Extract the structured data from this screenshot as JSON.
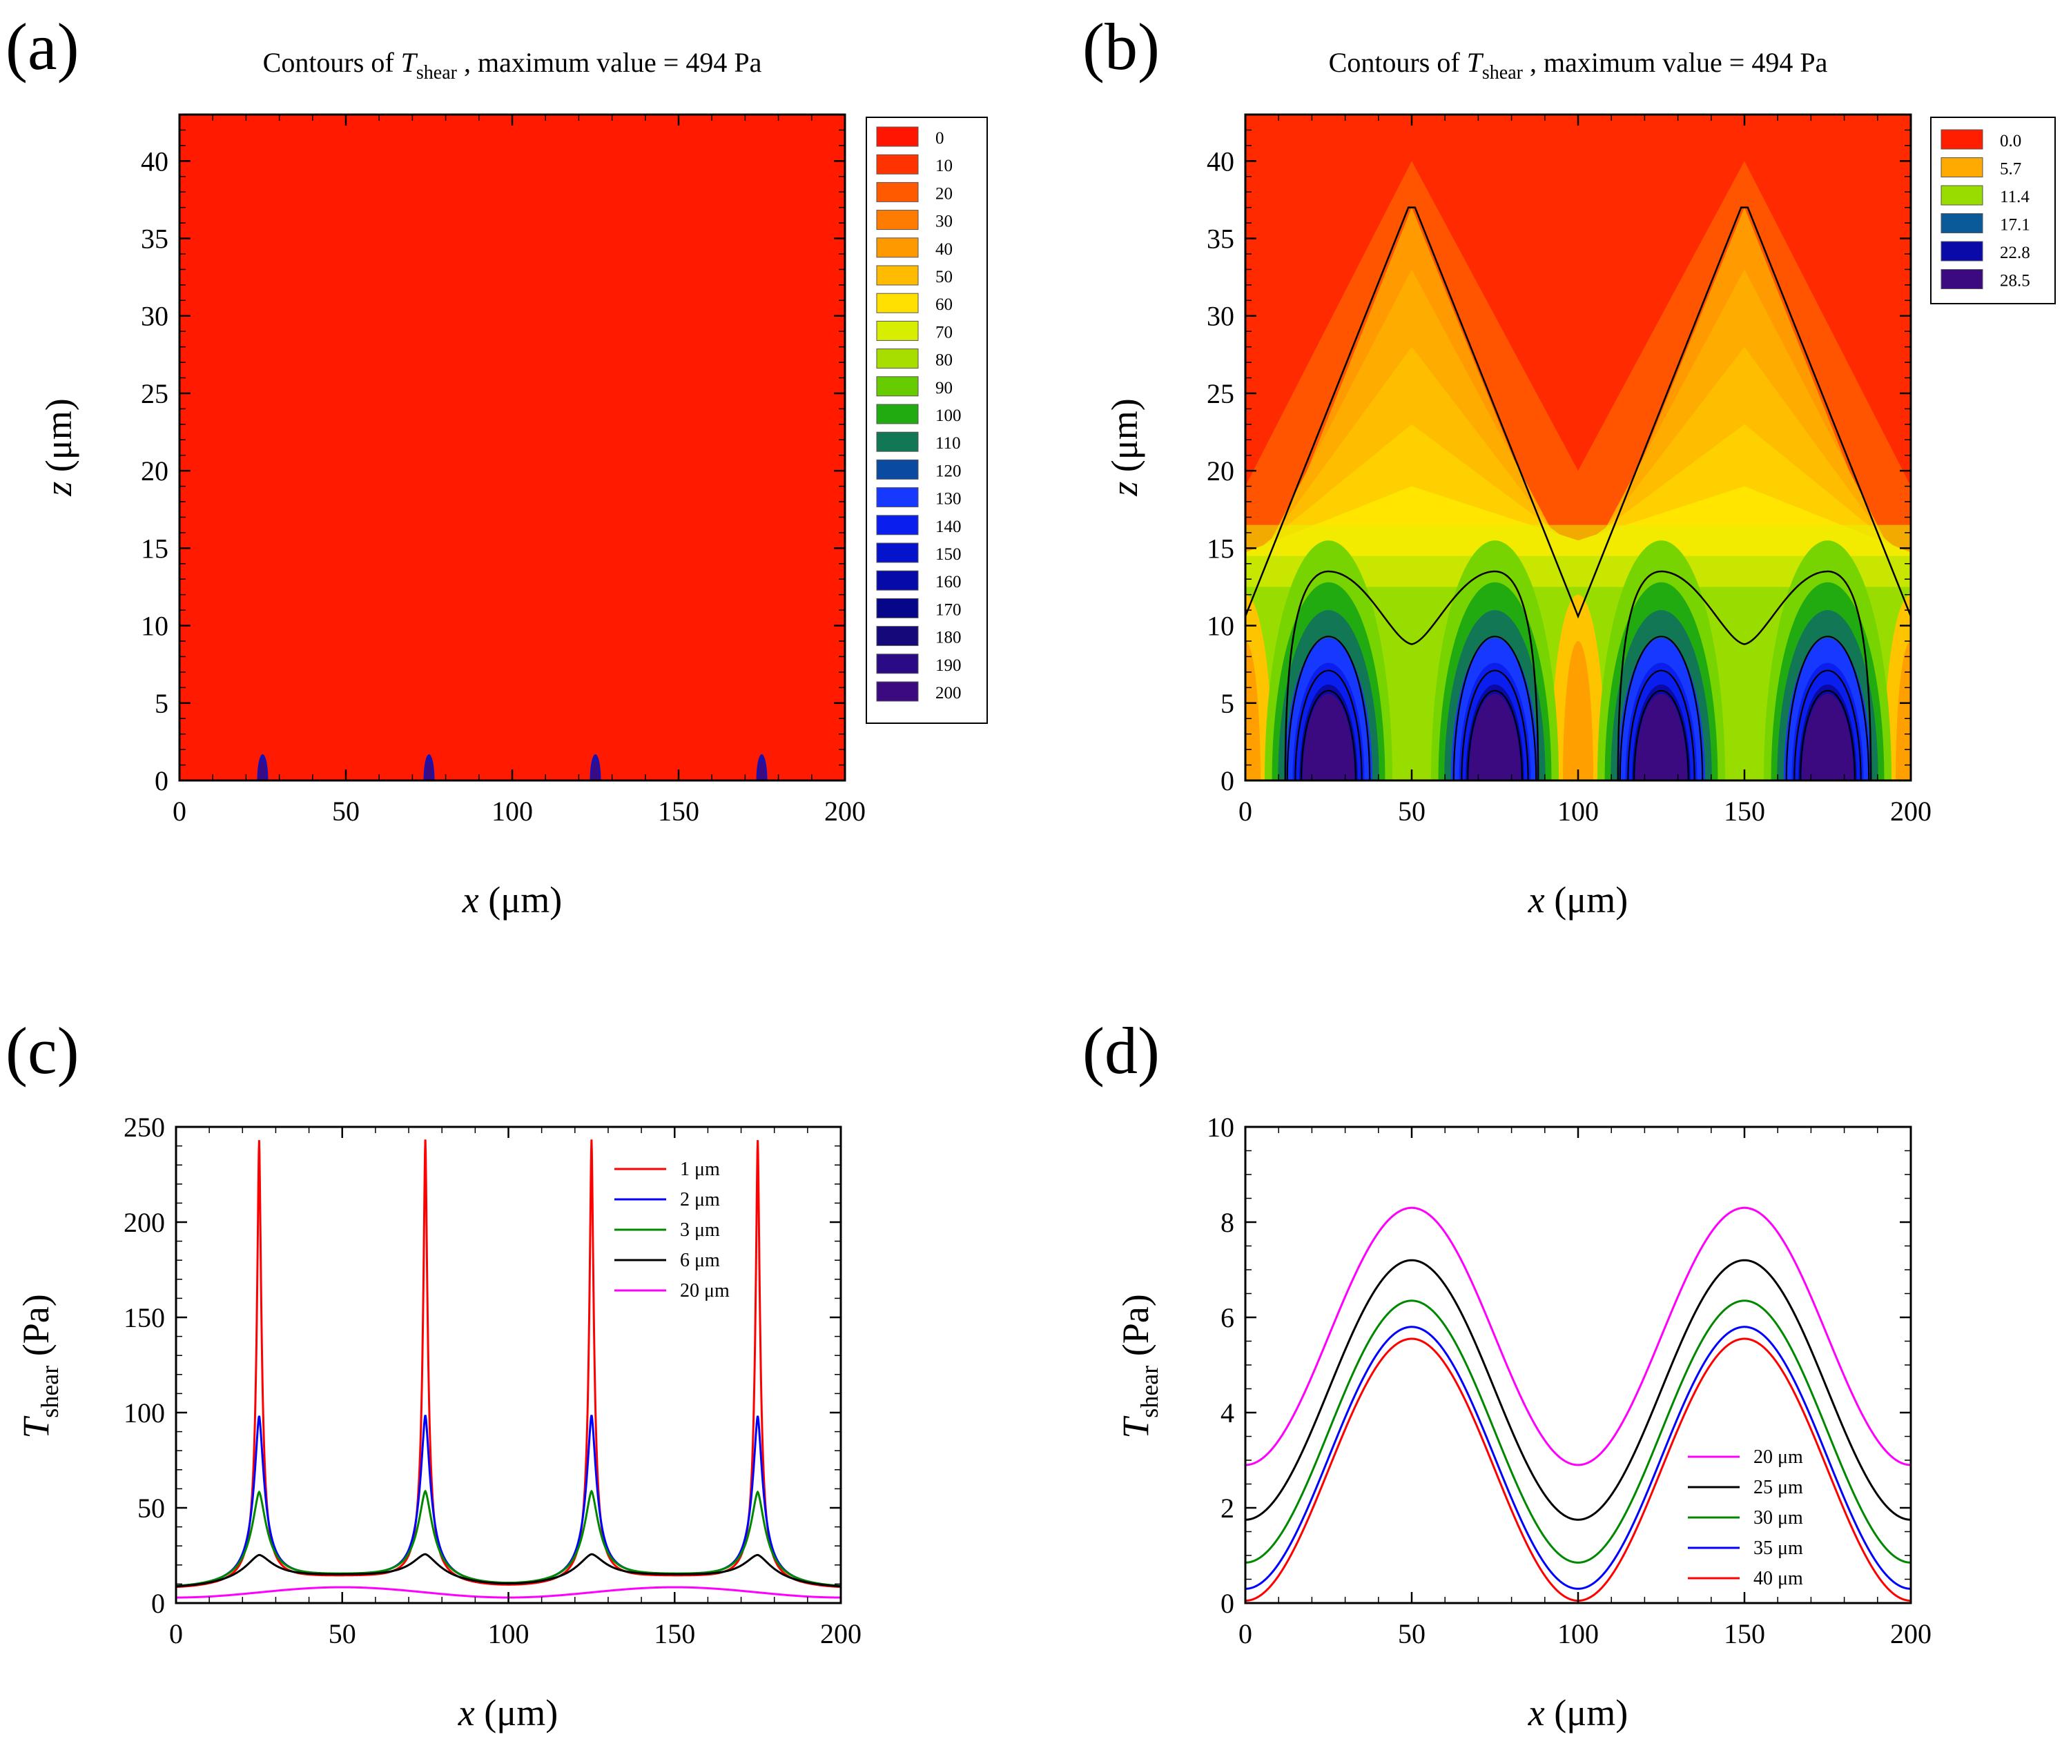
{
  "panels": {
    "a": {
      "label": "(a)",
      "title_prefix": "Contours of ",
      "title_var": "T",
      "title_sub": "shear",
      "title_suffix": " , maximum value = 494 Pa"
    },
    "b": {
      "label": "(b)",
      "title_prefix": "Contours of ",
      "title_var": "T",
      "title_sub": "shear",
      "title_suffix": " , maximum value = 494 Pa"
    },
    "c": {
      "label": "(c)"
    },
    "d": {
      "label": "(d)"
    }
  },
  "axis_text": {
    "x_var": "x",
    "x_unit": " (μm)",
    "z_var": "z",
    "z_unit": " (μm)",
    "t_var": "T",
    "t_sub": "shear",
    "t_unit": " (Pa)"
  },
  "chart_data": [
    {
      "id": "a",
      "type": "heatmap",
      "title": "Contours of T_shear , maximum value = 494 Pa",
      "xlabel": "x (μm)",
      "ylabel": "z (μm)",
      "xlim": [
        0,
        200
      ],
      "ylim": [
        0,
        43
      ],
      "xticks": [
        0,
        50,
        100,
        150,
        200
      ],
      "yticks": [
        0,
        5,
        10,
        15,
        20,
        25,
        30,
        35,
        40
      ],
      "legend_levels": [
        "0",
        "10",
        "20",
        "30",
        "40",
        "50",
        "60",
        "70",
        "80",
        "90",
        "100",
        "110",
        "120",
        "130",
        "140",
        "150",
        "160",
        "170",
        "180",
        "190",
        "200"
      ],
      "legend_colors": [
        "#ff1500",
        "#ff3300",
        "#ff5a00",
        "#ff7c00",
        "#ff9900",
        "#ffbb00",
        "#ffe000",
        "#d8ee00",
        "#a8dd00",
        "#66cc00",
        "#22aa11",
        "#117755",
        "#0a4aa0",
        "#1638ff",
        "#0a1fee",
        "#0613cc",
        "#050aa8",
        "#06068a",
        "#15087a",
        "#2b0a85",
        "#3b0a80"
      ],
      "hotspots_x": [
        25,
        75,
        125,
        175
      ]
    },
    {
      "id": "b",
      "type": "heatmap",
      "title": "Contours of T_shear , maximum value = 494 Pa",
      "xlabel": "x (μm)",
      "ylabel": "z (μm)",
      "xlim": [
        0,
        200
      ],
      "ylim": [
        0,
        43
      ],
      "xticks": [
        0,
        50,
        100,
        150,
        200
      ],
      "yticks": [
        0,
        5,
        10,
        15,
        20,
        25,
        30,
        35,
        40
      ],
      "legend_levels": [
        "0.0",
        "5.7",
        "11.4",
        "17.1",
        "22.8",
        "28.5"
      ],
      "legend_colors": [
        "#ff1e00",
        "#ffaa00",
        "#99dd00",
        "#0a5a99",
        "#0a0aa8",
        "#3b0a80"
      ],
      "hotspots_x": [
        25,
        75,
        125,
        175
      ]
    },
    {
      "id": "c",
      "type": "line",
      "xlabel": "x (μm)",
      "ylabel": "T_shear (Pa)",
      "xlim": [
        0,
        200
      ],
      "ylim": [
        0,
        250
      ],
      "xticks": [
        0,
        50,
        100,
        150,
        200
      ],
      "yticks": [
        0,
        50,
        100,
        150,
        200,
        250
      ],
      "legend": "top-right",
      "peak_x": [
        25,
        75,
        125,
        175
      ],
      "series": [
        {
          "name": "1 μm",
          "color": "#ff0000",
          "peak": 245,
          "mid": 12,
          "ends": 7,
          "width": 0.9
        },
        {
          "name": "2 μm",
          "color": "#0000ff",
          "peak": 100,
          "mid": 12,
          "ends": 7,
          "width": 2.0
        },
        {
          "name": "3 μm",
          "color": "#008800",
          "peak": 60,
          "mid": 12,
          "ends": 7,
          "width": 3.0
        },
        {
          "name": "6 μm",
          "color": "#000000",
          "peak": 27,
          "mid": 12,
          "ends": 7,
          "width": 6.0
        },
        {
          "name": "20 μm",
          "color": "#ff00ff",
          "max": 8.3,
          "min": 2.9
        }
      ]
    },
    {
      "id": "d",
      "type": "line",
      "xlabel": "x (μm)",
      "ylabel": "T_shear (Pa)",
      "xlim": [
        0,
        200
      ],
      "ylim": [
        0,
        10
      ],
      "xticks": [
        0,
        50,
        100,
        150,
        200
      ],
      "yticks": [
        0,
        2,
        4,
        6,
        8,
        10
      ],
      "legend": "bottom-right",
      "series": [
        {
          "name": "20 μm",
          "color": "#ff00ff",
          "max": 8.3,
          "min": 2.9
        },
        {
          "name": "25 μm",
          "color": "#000000",
          "max": 7.2,
          "min": 1.75
        },
        {
          "name": "30 μm",
          "color": "#008800",
          "max": 6.35,
          "min": 0.85
        },
        {
          "name": "35 μm",
          "color": "#0000ff",
          "max": 5.8,
          "min": 0.3
        },
        {
          "name": "40 μm",
          "color": "#ff0000",
          "max": 5.55,
          "min": 0.05
        }
      ]
    }
  ]
}
